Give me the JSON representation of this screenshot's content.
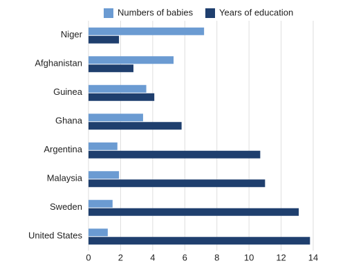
{
  "chart_data": {
    "type": "hbar",
    "categories": [
      "Niger",
      "Afghanistan",
      "Guinea",
      "Ghana",
      "Argentina",
      "Malaysia",
      "Sweden",
      "United States"
    ],
    "series": [
      {
        "name": "Numbers of babies",
        "color": "#6b9bd2",
        "values": [
          7.2,
          5.3,
          3.6,
          3.4,
          1.8,
          1.9,
          1.5,
          1.2
        ]
      },
      {
        "name": "Years of education",
        "color": "#1f3f6e",
        "values": [
          1.9,
          2.8,
          4.1,
          5.8,
          10.7,
          11.0,
          13.1,
          13.8
        ]
      }
    ],
    "xlim": [
      0,
      14
    ],
    "xticks": [
      0,
      2,
      4,
      6,
      8,
      10,
      12,
      14
    ],
    "grid": true,
    "legend": "top"
  }
}
